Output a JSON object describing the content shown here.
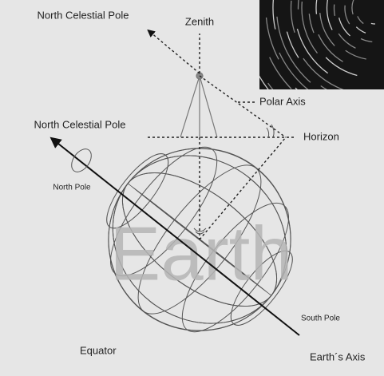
{
  "labels": {
    "north_celestial_pole_top": "North Celestial Pole",
    "zenith": "Zenith",
    "polar_axis": "Polar Axis",
    "north_celestial_pole": "North Celestial Pole",
    "horizon": "Horizon",
    "north_pole": "North Pole",
    "earth": "Earth",
    "south_pole": "South Pole",
    "equator": "Equator",
    "earths_axis": "Earth´s Axis"
  }
}
